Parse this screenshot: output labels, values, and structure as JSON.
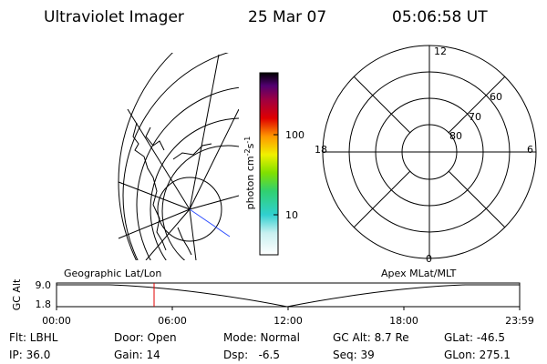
{
  "header": {
    "title": "Ultraviolet Imager",
    "date": "25 Mar 07",
    "time": "05:06:58 UT"
  },
  "colorbar": {
    "label": {
      "unit": "photon cm",
      "exp1": "-2",
      "unit2": "s",
      "exp2": "-1"
    },
    "ticks": [
      "100",
      "10"
    ]
  },
  "polar": {
    "labels": {
      "top": "12",
      "left": "18",
      "right": "6",
      "bottom": "0"
    },
    "rings": [
      "60",
      "70",
      "80"
    ]
  },
  "timeline": {
    "left_title": "Geographic Lat/Lon",
    "right_title": "Apex MLat/MLT",
    "y_label": "GC Alt",
    "y_ticks": [
      "9.0",
      "1.8"
    ],
    "x_ticks": [
      "00:00",
      "06:00",
      "12:00",
      "18:00",
      "23:59"
    ]
  },
  "footer": {
    "rows": [
      [
        "Flt: LBHL",
        "Door: Open",
        "Mode: Normal",
        "GC Alt: 8.7 Re",
        "GLat: -46.5"
      ],
      [
        "IP: 36.0",
        "Gain: 14",
        "Dsp:   -6.5",
        "Seq: 39",
        "GLon: 275.1"
      ]
    ]
  }
}
